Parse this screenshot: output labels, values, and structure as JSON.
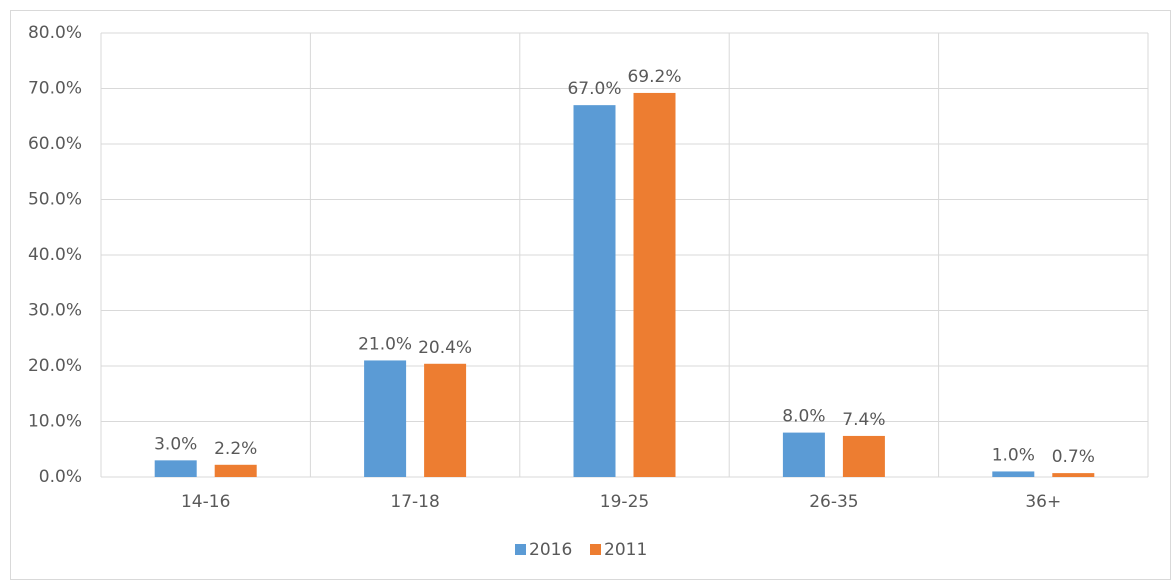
{
  "chart_data": {
    "type": "bar",
    "categories": [
      "14-16",
      "17-18",
      "19-25",
      "26-35",
      "36+"
    ],
    "series": [
      {
        "name": "2016",
        "color": "#5b9bd5",
        "values": [
          3.0,
          21.0,
          67.0,
          8.0,
          1.0
        ],
        "value_labels": [
          "3.0%",
          "21.0%",
          "67.0%",
          "8.0%",
          "1.0%"
        ]
      },
      {
        "name": "2011",
        "color": "#ed7d31",
        "values": [
          2.2,
          20.4,
          69.2,
          7.4,
          0.7
        ],
        "value_labels": [
          "2.2%",
          "20.4%",
          "69.2%",
          "7.4%",
          "0.7%"
        ]
      }
    ],
    "ylim": [
      0,
      80
    ],
    "yticks": [
      {
        "value": 0,
        "label": "0.0%"
      },
      {
        "value": 10,
        "label": "10.0%"
      },
      {
        "value": 20,
        "label": "20.0%"
      },
      {
        "value": 30,
        "label": "30.0%"
      },
      {
        "value": 40,
        "label": "40.0%"
      },
      {
        "value": 50,
        "label": "50.0%"
      },
      {
        "value": 60,
        "label": "60.0%"
      },
      {
        "value": 70,
        "label": "70.0%"
      },
      {
        "value": 80,
        "label": "80.0%"
      }
    ],
    "grid": true,
    "legend": "bottom"
  }
}
